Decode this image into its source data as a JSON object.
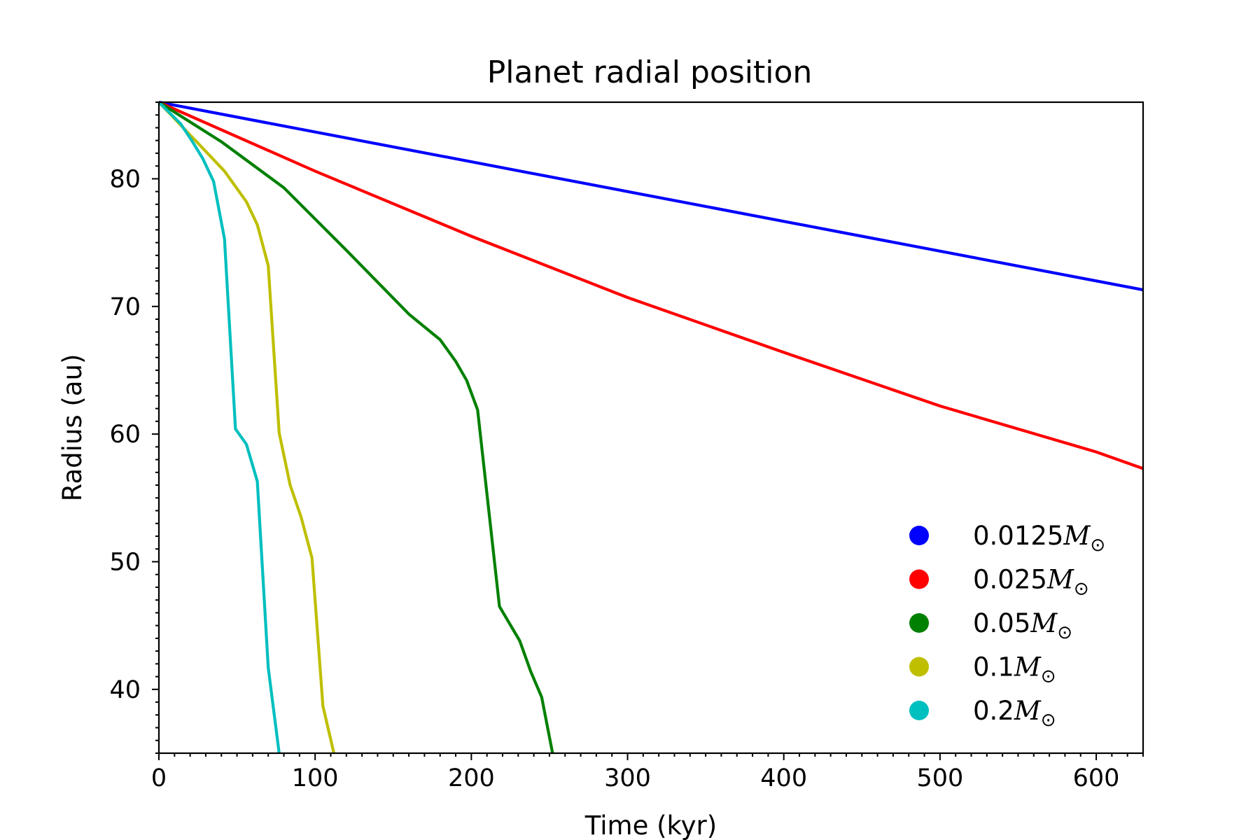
{
  "chart_data": {
    "type": "line",
    "title": "Planet radial position",
    "xlabel": "Time (kyr)",
    "ylabel": "Radius (au)",
    "xlim": [
      0,
      630
    ],
    "ylim": [
      35,
      86
    ],
    "xticks": [
      0,
      100,
      200,
      300,
      400,
      500,
      600
    ],
    "yticks": [
      40,
      50,
      60,
      70,
      80
    ],
    "x_minor_step": 10,
    "y_minor_step": 1,
    "grid": false,
    "legend_position": "lower-right",
    "legend_marker": "circle",
    "series": [
      {
        "name": "0.0125M⊙",
        "name_value": "0.0125",
        "name_symbol": "M",
        "color": "#0000ff",
        "points": [
          [
            0,
            86
          ],
          [
            630,
            71.3
          ]
        ]
      },
      {
        "name": "0.025M⊙",
        "name_value": "0.025",
        "name_symbol": "M",
        "color": "#ff0000",
        "points": [
          [
            0,
            86
          ],
          [
            100,
            80.6
          ],
          [
            200,
            75.5
          ],
          [
            300,
            70.7
          ],
          [
            400,
            66.4
          ],
          [
            500,
            62.2
          ],
          [
            600,
            58.6
          ],
          [
            630,
            57.3
          ]
        ]
      },
      {
        "name": "0.05M⊙",
        "name_value": "0.05",
        "name_symbol": "M",
        "color": "#008000",
        "points": [
          [
            0,
            86
          ],
          [
            40,
            82.9
          ],
          [
            80,
            79.3
          ],
          [
            120,
            74.4
          ],
          [
            160,
            69.4
          ],
          [
            180,
            67.4
          ],
          [
            190,
            65.7
          ],
          [
            197,
            64.2
          ],
          [
            204,
            61.9
          ],
          [
            218,
            46.5
          ],
          [
            231,
            43.8
          ],
          [
            238,
            41.4
          ],
          [
            245,
            39.4
          ],
          [
            252,
            35
          ]
        ]
      },
      {
        "name": "0.1M⊙",
        "name_value": "0.1",
        "name_symbol": "M",
        "color": "#bfbf00",
        "points": [
          [
            0,
            86
          ],
          [
            14,
            84.2
          ],
          [
            28,
            82.4
          ],
          [
            42,
            80.6
          ],
          [
            56,
            78.2
          ],
          [
            63,
            76.4
          ],
          [
            70,
            73.2
          ],
          [
            77,
            60.1
          ],
          [
            84,
            56.0
          ],
          [
            91,
            53.5
          ],
          [
            98,
            50.3
          ],
          [
            105,
            38.7
          ],
          [
            112,
            35
          ]
        ]
      },
      {
        "name": "0.2M⊙",
        "name_value": "0.2",
        "name_symbol": "M",
        "color": "#00bfbf",
        "points": [
          [
            0,
            86
          ],
          [
            14,
            84.3
          ],
          [
            21,
            83.0
          ],
          [
            28,
            81.6
          ],
          [
            35,
            79.8
          ],
          [
            42,
            75.3
          ],
          [
            49,
            60.4
          ],
          [
            56,
            59.2
          ],
          [
            63,
            56.3
          ],
          [
            70,
            41.7
          ],
          [
            77,
            35
          ]
        ]
      }
    ]
  }
}
